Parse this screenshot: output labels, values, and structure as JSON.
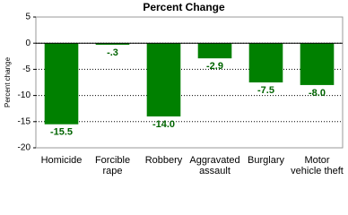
{
  "chart_data": {
    "type": "bar",
    "title": "Percent Change",
    "y_label": "Percent change",
    "categories": [
      "Homicide",
      "Forcible\nrape",
      "Robbery",
      "Aggravated\nassault",
      "Burglary",
      "Motor\nvehicle theft"
    ],
    "values": [
      -15.5,
      -0.3,
      -14.0,
      -2.9,
      -7.5,
      -8.0
    ],
    "value_labels": [
      "-15.5",
      "-.3",
      "-14.0",
      "-2.9",
      "-7.5",
      "-8.0"
    ],
    "color": "#008000",
    "ylim": [
      -20,
      5
    ],
    "yticks": [
      5,
      0,
      -5,
      -10,
      -15,
      -20
    ],
    "grid": true
  }
}
